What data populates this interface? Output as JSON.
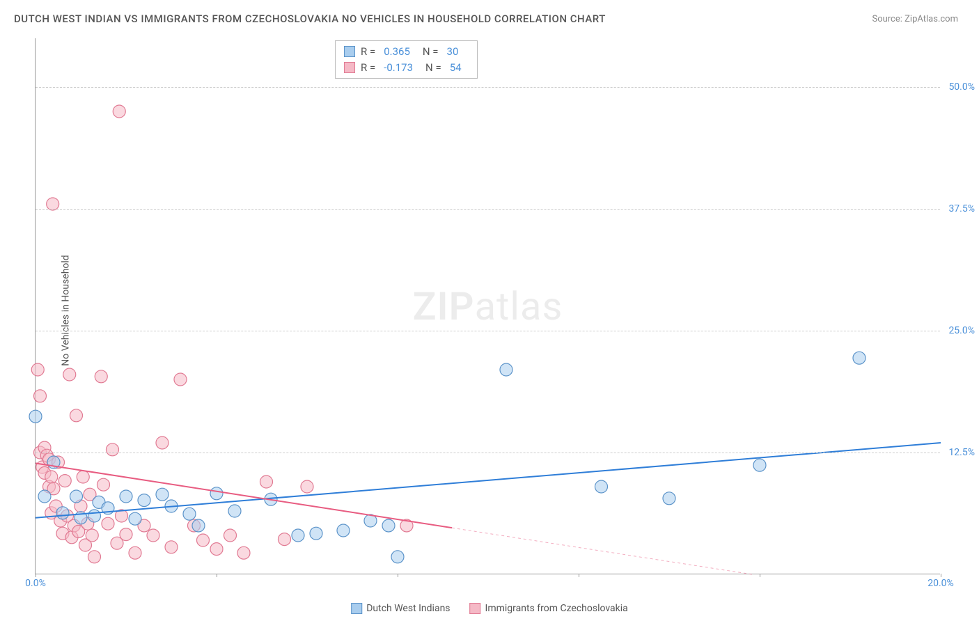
{
  "title": "DUTCH WEST INDIAN VS IMMIGRANTS FROM CZECHOSLOVAKIA NO VEHICLES IN HOUSEHOLD CORRELATION CHART",
  "source": "Source: ZipAtlas.com",
  "ylabel": "No Vehicles in Household",
  "watermark_zip": "ZIP",
  "watermark_atlas": "atlas",
  "chart": {
    "type": "scatter",
    "xlim": [
      0,
      20
    ],
    "ylim": [
      0,
      55
    ],
    "xticks": [
      {
        "pos": 0,
        "label": "0.0%"
      },
      {
        "pos": 4,
        "label": ""
      },
      {
        "pos": 8,
        "label": ""
      },
      {
        "pos": 12,
        "label": ""
      },
      {
        "pos": 16,
        "label": ""
      },
      {
        "pos": 20,
        "label": "20.0%"
      }
    ],
    "yticks": [
      {
        "pos": 12.5,
        "label": "12.5%"
      },
      {
        "pos": 25.0,
        "label": "25.0%"
      },
      {
        "pos": 37.5,
        "label": "37.5%"
      },
      {
        "pos": 50.0,
        "label": "50.0%"
      }
    ],
    "grid_color": "#cccccc",
    "background_color": "#ffffff",
    "series": [
      {
        "name": "Dutch West Indians",
        "label": "Dutch West Indians",
        "fill": "#a9cdee",
        "stroke": "#5b93c9",
        "marker_radius": 9,
        "fill_opacity": 0.55,
        "R": "0.365",
        "N": "30",
        "trend": {
          "x1": 0,
          "y1": 5.8,
          "x2": 20,
          "y2": 13.5,
          "color": "#2f7ed8",
          "width": 2,
          "dash_after_x": null
        },
        "points": [
          [
            0.0,
            16.2
          ],
          [
            0.2,
            8.0
          ],
          [
            0.4,
            11.5
          ],
          [
            0.6,
            6.3
          ],
          [
            0.9,
            8.0
          ],
          [
            1.0,
            5.8
          ],
          [
            1.3,
            6.0
          ],
          [
            1.4,
            7.4
          ],
          [
            1.6,
            6.8
          ],
          [
            2.0,
            8.0
          ],
          [
            2.2,
            5.7
          ],
          [
            2.4,
            7.6
          ],
          [
            2.8,
            8.2
          ],
          [
            3.0,
            7.0
          ],
          [
            3.4,
            6.2
          ],
          [
            3.6,
            5.0
          ],
          [
            4.0,
            8.3
          ],
          [
            4.4,
            6.5
          ],
          [
            5.2,
            7.7
          ],
          [
            5.8,
            4.0
          ],
          [
            6.2,
            4.2
          ],
          [
            6.8,
            4.5
          ],
          [
            7.4,
            5.5
          ],
          [
            7.8,
            5.0
          ],
          [
            8.0,
            1.8
          ],
          [
            10.4,
            21.0
          ],
          [
            12.5,
            9.0
          ],
          [
            14.0,
            7.8
          ],
          [
            16.0,
            11.2
          ],
          [
            18.2,
            22.2
          ]
        ]
      },
      {
        "name": "Immigrants from Czechoslovakia",
        "label": "Immigrants from Czechoslovakia",
        "fill": "#f5b9c6",
        "stroke": "#e17a93",
        "marker_radius": 9,
        "fill_opacity": 0.55,
        "R": "-0.173",
        "N": "54",
        "trend": {
          "x1": 0,
          "y1": 11.4,
          "x2": 20,
          "y2": -3.0,
          "color": "#e85c81",
          "width": 2,
          "dash_after_x": 9.2
        },
        "points": [
          [
            0.05,
            21.0
          ],
          [
            0.1,
            18.3
          ],
          [
            0.1,
            12.5
          ],
          [
            0.15,
            11.0
          ],
          [
            0.2,
            10.4
          ],
          [
            0.2,
            13.0
          ],
          [
            0.25,
            12.2
          ],
          [
            0.3,
            9.0
          ],
          [
            0.3,
            11.8
          ],
          [
            0.35,
            10.0
          ],
          [
            0.35,
            6.3
          ],
          [
            0.38,
            38.0
          ],
          [
            0.4,
            8.8
          ],
          [
            0.45,
            7.0
          ],
          [
            0.5,
            11.5
          ],
          [
            0.55,
            5.5
          ],
          [
            0.6,
            4.2
          ],
          [
            0.65,
            9.6
          ],
          [
            0.7,
            6.0
          ],
          [
            0.75,
            20.5
          ],
          [
            0.8,
            3.8
          ],
          [
            0.85,
            5.0
          ],
          [
            0.9,
            16.3
          ],
          [
            0.95,
            4.4
          ],
          [
            1.0,
            7.0
          ],
          [
            1.05,
            10.0
          ],
          [
            1.1,
            3.0
          ],
          [
            1.15,
            5.2
          ],
          [
            1.2,
            8.2
          ],
          [
            1.25,
            4.0
          ],
          [
            1.3,
            1.8
          ],
          [
            1.45,
            20.3
          ],
          [
            1.5,
            9.2
          ],
          [
            1.6,
            5.2
          ],
          [
            1.7,
            12.8
          ],
          [
            1.8,
            3.2
          ],
          [
            1.85,
            47.5
          ],
          [
            1.9,
            6.0
          ],
          [
            2.0,
            4.1
          ],
          [
            2.2,
            2.2
          ],
          [
            2.4,
            5.0
          ],
          [
            2.6,
            4.0
          ],
          [
            2.8,
            13.5
          ],
          [
            3.0,
            2.8
          ],
          [
            3.2,
            20.0
          ],
          [
            3.5,
            5.0
          ],
          [
            3.7,
            3.5
          ],
          [
            4.0,
            2.6
          ],
          [
            4.3,
            4.0
          ],
          [
            4.6,
            2.2
          ],
          [
            5.1,
            9.5
          ],
          [
            5.5,
            3.6
          ],
          [
            6.0,
            9.0
          ],
          [
            8.2,
            5.0
          ]
        ]
      }
    ]
  },
  "legend": {
    "items": [
      {
        "label": "Dutch West Indians",
        "fill": "#a9cdee",
        "stroke": "#5b93c9"
      },
      {
        "label": "Immigrants from Czechoslovakia",
        "fill": "#f5b9c6",
        "stroke": "#e17a93"
      }
    ]
  }
}
